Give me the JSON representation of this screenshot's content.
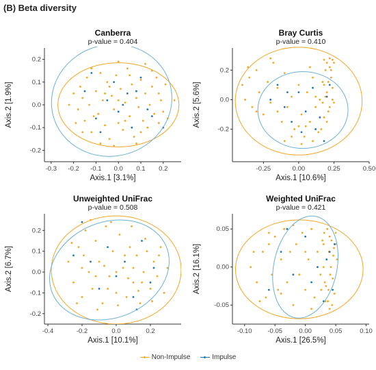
{
  "figure_title": "(B) Beta diversity",
  "colors": {
    "non_impulse": "#f5a623",
    "impulse": "#1f77b4",
    "impulse_ellipse": "#6ab0d8",
    "axis": "#333333"
  },
  "legend": [
    {
      "label": "Non-Impulse",
      "color": "#f5a623"
    },
    {
      "label": "Impulse",
      "color": "#1f77b4"
    }
  ],
  "chart_data": [
    {
      "type": "scatter",
      "title": "Canberra",
      "subtitle": "p-value = 0.404",
      "xlabel": "Axis.1   [3.1%]",
      "ylabel": "Axis.2   [1.9%]",
      "xlim": [
        -0.33,
        0.28
      ],
      "ylim": [
        -0.25,
        0.25
      ],
      "xticks": [
        -0.3,
        -0.2,
        -0.1,
        0.0,
        0.1,
        0.2
      ],
      "xtick_labels": [
        "-0.3",
        "-0.2",
        "-0.1",
        "0.0",
        "0.1",
        "0.2"
      ],
      "yticks": [
        -0.2,
        -0.1,
        0.0,
        0.1,
        0.2
      ],
      "ytick_labels": [
        "-0.2",
        "-0.1",
        "0.0",
        "0.1",
        "0.2"
      ],
      "ellipses": [
        {
          "group": "Non-Impulse",
          "cx": 0.0,
          "cy": 0.0,
          "rx": 0.27,
          "ry": 0.185,
          "angle": 0
        },
        {
          "group": "Impulse",
          "cx": -0.03,
          "cy": 0.02,
          "rx": 0.27,
          "ry": 0.245,
          "angle": -15
        }
      ],
      "spread": {
        "x": [
          -0.2,
          0.2
        ],
        "y": [
          -0.14,
          0.15
        ]
      },
      "non_impulse_points": [
        [
          -0.2,
          0.05
        ],
        [
          -0.18,
          -0.02
        ],
        [
          -0.17,
          0.08
        ],
        [
          -0.15,
          -0.07
        ],
        [
          -0.14,
          0.12
        ],
        [
          -0.13,
          0.0
        ],
        [
          -0.12,
          -0.12
        ],
        [
          -0.1,
          0.06
        ],
        [
          -0.09,
          -0.04
        ],
        [
          -0.08,
          0.14
        ],
        [
          -0.07,
          0.02
        ],
        [
          -0.06,
          -0.09
        ],
        [
          -0.05,
          0.1
        ],
        [
          -0.04,
          -0.15
        ],
        [
          -0.03,
          0.04
        ],
        [
          -0.02,
          -0.02
        ],
        [
          -0.01,
          0.13
        ],
        [
          0.0,
          -0.08
        ],
        [
          0.01,
          0.07
        ],
        [
          0.02,
          -0.11
        ],
        [
          0.03,
          0.01
        ],
        [
          0.04,
          0.16
        ],
        [
          0.05,
          -0.05
        ],
        [
          0.06,
          0.09
        ],
        [
          0.07,
          -0.14
        ],
        [
          0.08,
          0.03
        ],
        [
          0.09,
          -0.01
        ],
        [
          0.1,
          0.11
        ],
        [
          0.11,
          -0.07
        ],
        [
          0.12,
          0.05
        ],
        [
          0.13,
          -0.1
        ],
        [
          0.14,
          0.0
        ],
        [
          0.15,
          0.08
        ],
        [
          0.16,
          -0.04
        ],
        [
          0.17,
          0.12
        ],
        [
          0.18,
          -0.08
        ],
        [
          0.19,
          0.02
        ],
        [
          0.2,
          -0.03
        ],
        [
          0.21,
          0.09
        ],
        [
          0.22,
          -0.06
        ],
        [
          -0.19,
          -0.08
        ],
        [
          -0.16,
          0.03
        ],
        [
          -0.11,
          -0.05
        ],
        [
          -0.06,
          0.05
        ],
        [
          0.0,
          0.02
        ],
        [
          0.05,
          0.13
        ],
        [
          0.1,
          -0.12
        ],
        [
          0.15,
          0.15
        ],
        [
          -0.02,
          -0.18
        ],
        [
          0.08,
          -0.17
        ],
        [
          -0.22,
          0.0
        ],
        [
          0.25,
          0.02
        ],
        [
          -0.12,
          0.16
        ],
        [
          0.12,
          0.18
        ],
        [
          0.0,
          0.19
        ],
        [
          -0.08,
          -0.17
        ],
        [
          0.18,
          0.05
        ],
        [
          -0.16,
          -0.12
        ],
        [
          0.03,
          -0.07
        ],
        [
          -0.04,
          0.08
        ]
      ],
      "impulse_points": [
        [
          -0.12,
          0.14
        ],
        [
          -0.1,
          -0.06
        ],
        [
          -0.05,
          0.02
        ],
        [
          -0.02,
          0.1
        ],
        [
          0.0,
          -0.03
        ],
        [
          0.04,
          0.05
        ],
        [
          0.06,
          -0.1
        ],
        [
          0.1,
          0.12
        ],
        [
          0.13,
          -0.02
        ],
        [
          -0.15,
          0.06
        ],
        [
          -0.08,
          -0.12
        ],
        [
          0.02,
          0.0
        ],
        [
          0.08,
          0.06
        ],
        [
          0.15,
          -0.05
        ],
        [
          0.2,
          -0.1
        ]
      ]
    },
    {
      "type": "scatter",
      "title": "Bray Curtis",
      "subtitle": "p-value = 0.410",
      "xlabel": "Axis.1   [10.6%]",
      "ylabel": "Axis.2   [5.6%]",
      "xlim": [
        -0.47,
        0.5
      ],
      "ylim": [
        -0.42,
        0.35
      ],
      "xticks": [
        -0.25,
        0.0,
        0.25,
        0.5
      ],
      "xtick_labels": [
        "-0.25",
        "0.00",
        "0.25",
        "0.50"
      ],
      "yticks": [
        -0.2,
        0.0,
        0.2
      ],
      "ytick_labels": [
        "-0.2",
        "0.0",
        "0.2"
      ],
      "ellipses": [
        {
          "group": "Non-Impulse",
          "cx": 0.0,
          "cy": -0.01,
          "rx": 0.45,
          "ry": 0.365,
          "angle": 0
        },
        {
          "group": "Impulse",
          "cx": 0.03,
          "cy": -0.07,
          "rx": 0.32,
          "ry": 0.26,
          "angle": 0
        }
      ],
      "spread": {
        "x": [
          -0.4,
          0.28
        ],
        "y": [
          -0.32,
          0.3
        ]
      },
      "non_impulse_points": [
        [
          -0.4,
          0.1
        ],
        [
          -0.38,
          0.0
        ],
        [
          -0.35,
          0.15
        ],
        [
          -0.33,
          -0.05
        ],
        [
          -0.3,
          0.2
        ],
        [
          -0.28,
          0.05
        ],
        [
          -0.25,
          -0.1
        ],
        [
          -0.22,
          0.12
        ],
        [
          -0.2,
          -0.02
        ],
        [
          -0.18,
          0.25
        ],
        [
          -0.15,
          0.08
        ],
        [
          -0.12,
          -0.15
        ],
        [
          -0.1,
          0.18
        ],
        [
          -0.08,
          -0.05
        ],
        [
          -0.05,
          0.02
        ],
        [
          -0.03,
          -0.2
        ],
        [
          0.0,
          0.1
        ],
        [
          0.02,
          -0.1
        ],
        [
          0.04,
          -0.25
        ],
        [
          0.06,
          0.05
        ],
        [
          0.08,
          -0.15
        ],
        [
          0.1,
          0.15
        ],
        [
          0.12,
          -0.05
        ],
        [
          0.14,
          -0.22
        ],
        [
          0.15,
          0.0
        ],
        [
          0.17,
          0.12
        ],
        [
          0.18,
          -0.12
        ],
        [
          0.19,
          0.2
        ],
        [
          0.2,
          0.05
        ],
        [
          0.21,
          -0.08
        ],
        [
          0.22,
          0.22
        ],
        [
          0.23,
          0.15
        ],
        [
          0.24,
          0.08
        ],
        [
          0.25,
          0.25
        ],
        [
          0.25,
          -0.02
        ],
        [
          0.22,
          0.28
        ],
        [
          0.2,
          0.25
        ],
        [
          0.24,
          0.27
        ],
        [
          0.18,
          0.27
        ],
        [
          0.23,
          0.2
        ],
        [
          0.21,
          0.12
        ],
        [
          0.19,
          0.02
        ],
        [
          0.17,
          -0.02
        ],
        [
          0.2,
          -0.15
        ],
        [
          0.16,
          -0.2
        ],
        [
          0.1,
          -0.28
        ],
        [
          0.02,
          -0.3
        ],
        [
          -0.05,
          -0.25
        ],
        [
          -0.1,
          -0.28
        ],
        [
          0.05,
          -0.18
        ],
        [
          -0.2,
          0.28
        ],
        [
          -0.3,
          -0.08
        ],
        [
          -0.36,
          0.22
        ],
        [
          0.12,
          0.02
        ],
        [
          0.08,
          0.22
        ],
        [
          -0.15,
          -0.08
        ],
        [
          0.0,
          -0.18
        ],
        [
          0.22,
          -0.05
        ],
        [
          0.24,
          0.0
        ],
        [
          0.18,
          0.1
        ]
      ],
      "impulse_points": [
        [
          -0.15,
          0.1
        ],
        [
          -0.1,
          -0.05
        ],
        [
          -0.05,
          -0.15
        ],
        [
          0.0,
          0.05
        ],
        [
          0.05,
          -0.08
        ],
        [
          0.1,
          0.08
        ],
        [
          0.15,
          -0.12
        ],
        [
          0.2,
          0.02
        ],
        [
          -0.2,
          0.0
        ],
        [
          0.02,
          -0.22
        ],
        [
          0.12,
          -0.2
        ],
        [
          0.18,
          -0.28
        ],
        [
          -0.08,
          0.05
        ],
        [
          0.22,
          0.1
        ]
      ]
    },
    {
      "type": "scatter",
      "title": "Unweighted UniFrac",
      "subtitle": "p-value = 0.508",
      "xlabel": "Axis.1   [10.1%]",
      "ylabel": "Axis.2   [6.7%]",
      "xlim": [
        -0.42,
        0.38
      ],
      "ylim": [
        -0.25,
        0.28
      ],
      "xticks": [
        -0.4,
        -0.2,
        0.0,
        0.2
      ],
      "xtick_labels": [
        "-0.4",
        "-0.2",
        "0.0",
        "0.2"
      ],
      "yticks": [
        -0.2,
        -0.1,
        0.0,
        0.1,
        0.2
      ],
      "ytick_labels": [
        "-0.2",
        "-0.1",
        "0.0",
        "0.1",
        "0.2"
      ],
      "ellipses": [
        {
          "group": "Non-Impulse",
          "cx": 0.0,
          "cy": 0.01,
          "rx": 0.38,
          "ry": 0.26,
          "angle": 0
        },
        {
          "group": "Impulse",
          "cx": -0.04,
          "cy": 0.01,
          "rx": 0.36,
          "ry": 0.23,
          "angle": -22
        }
      ],
      "spread": {
        "x": [
          -0.28,
          0.3
        ],
        "y": [
          -0.18,
          0.25
        ]
      },
      "non_impulse_points": [
        [
          -0.28,
          0.05
        ],
        [
          -0.25,
          -0.05
        ],
        [
          -0.22,
          0.12
        ],
        [
          -0.2,
          -0.12
        ],
        [
          -0.18,
          0.2
        ],
        [
          -0.16,
          0.0
        ],
        [
          -0.14,
          -0.08
        ],
        [
          -0.12,
          0.15
        ],
        [
          -0.1,
          0.05
        ],
        [
          -0.08,
          -0.15
        ],
        [
          -0.06,
          0.22
        ],
        [
          -0.04,
          -0.02
        ],
        [
          -0.02,
          0.1
        ],
        [
          0.0,
          -0.1
        ],
        [
          0.02,
          0.18
        ],
        [
          0.04,
          0.02
        ],
        [
          0.06,
          -0.12
        ],
        [
          0.08,
          0.12
        ],
        [
          0.1,
          -0.05
        ],
        [
          0.12,
          0.08
        ],
        [
          0.14,
          -0.15
        ],
        [
          0.16,
          0.0
        ],
        [
          0.18,
          0.1
        ],
        [
          0.2,
          -0.08
        ],
        [
          0.22,
          0.05
        ],
        [
          0.24,
          -0.02
        ],
        [
          0.26,
          0.12
        ],
        [
          0.28,
          -0.1
        ],
        [
          0.3,
          0.02
        ],
        [
          -0.26,
          0.14
        ],
        [
          -0.23,
          -0.15
        ],
        [
          -0.19,
          0.08
        ],
        [
          -0.15,
          0.25
        ],
        [
          -0.11,
          -0.18
        ],
        [
          -0.07,
          0.03
        ],
        [
          -0.03,
          0.24
        ],
        [
          0.01,
          -0.16
        ],
        [
          0.05,
          0.08
        ],
        [
          0.09,
          0.22
        ],
        [
          0.13,
          -0.09
        ],
        [
          0.17,
          0.16
        ],
        [
          0.21,
          -0.14
        ],
        [
          0.25,
          0.08
        ],
        [
          -0.12,
          -0.02
        ],
        [
          0.0,
          0.0
        ],
        [
          0.1,
          0.02
        ],
        [
          -0.2,
          0.02
        ],
        [
          0.15,
          -0.05
        ],
        [
          -0.05,
          -0.08
        ],
        [
          0.07,
          -0.03
        ]
      ],
      "impulse_points": [
        [
          -0.2,
          0.24
        ],
        [
          -0.15,
          0.05
        ],
        [
          -0.1,
          -0.08
        ],
        [
          -0.05,
          0.12
        ],
        [
          0.0,
          -0.02
        ],
        [
          0.05,
          0.05
        ],
        [
          0.1,
          -0.12
        ],
        [
          0.15,
          0.15
        ],
        [
          0.2,
          -0.05
        ],
        [
          -0.25,
          0.08
        ],
        [
          0.12,
          -0.18
        ],
        [
          0.22,
          0.02
        ]
      ]
    },
    {
      "type": "scatter",
      "title": "Weighted UniFrac",
      "subtitle": "p-value = 0.421",
      "xlabel": "Axis.1   [26.5%]",
      "ylabel": "Axis.2   [16.1%]",
      "xlim": [
        -0.12,
        0.105
      ],
      "ylim": [
        -0.075,
        0.07
      ],
      "xticks": [
        -0.1,
        -0.05,
        0.0,
        0.05,
        0.1
      ],
      "xtick_labels": [
        "-0.10",
        "-0.05",
        "0.00",
        "0.05",
        "0.10"
      ],
      "yticks": [
        -0.05,
        0.0,
        0.05
      ],
      "ytick_labels": [
        "-0.05",
        "0.00",
        "0.05"
      ],
      "ellipses": [
        {
          "group": "Non-Impulse",
          "cx": -0.01,
          "cy": -0.003,
          "rx": 0.105,
          "ry": 0.065,
          "angle": 0
        },
        {
          "group": "Impulse",
          "cx": 0.0,
          "cy": 0.0,
          "rx": 0.052,
          "ry": 0.068,
          "angle": 12
        }
      ],
      "spread": {
        "x": [
          -0.09,
          0.055
        ],
        "y": [
          -0.06,
          0.06
        ]
      },
      "non_impulse_points": [
        [
          -0.09,
          0.0
        ],
        [
          -0.08,
          -0.02
        ],
        [
          -0.07,
          0.02
        ],
        [
          -0.065,
          -0.04
        ],
        [
          -0.06,
          0.03
        ],
        [
          -0.055,
          -0.01
        ],
        [
          -0.05,
          0.04
        ],
        [
          -0.045,
          -0.03
        ],
        [
          -0.04,
          0.01
        ],
        [
          -0.035,
          0.05
        ],
        [
          -0.03,
          -0.02
        ],
        [
          -0.025,
          0.02
        ],
        [
          -0.02,
          -0.05
        ],
        [
          -0.015,
          0.03
        ],
        [
          -0.01,
          -0.01
        ],
        [
          -0.005,
          0.045
        ],
        [
          0.0,
          -0.03
        ],
        [
          0.005,
          0.01
        ],
        [
          0.01,
          0.05
        ],
        [
          0.015,
          -0.04
        ],
        [
          0.02,
          0.02
        ],
        [
          0.025,
          -0.01
        ],
        [
          0.03,
          0.03
        ],
        [
          0.032,
          -0.02
        ],
        [
          0.035,
          0.01
        ],
        [
          0.038,
          -0.03
        ],
        [
          0.04,
          0.04
        ],
        [
          0.042,
          0.0
        ],
        [
          0.045,
          -0.015
        ],
        [
          0.047,
          0.025
        ],
        [
          0.05,
          0.045
        ],
        [
          0.052,
          0.01
        ],
        [
          0.048,
          -0.035
        ],
        [
          0.044,
          -0.05
        ],
        [
          0.04,
          -0.055
        ],
        [
          0.036,
          0.05
        ],
        [
          0.033,
          -0.045
        ],
        [
          0.03,
          0.0
        ],
        [
          0.028,
          0.035
        ],
        [
          0.026,
          -0.03
        ],
        [
          0.05,
          0.03
        ],
        [
          0.046,
          0.015
        ],
        [
          0.043,
          0.035
        ],
        [
          0.041,
          -0.01
        ],
        [
          0.039,
          0.02
        ],
        [
          0.037,
          -0.045
        ],
        [
          0.034,
          -0.025
        ],
        [
          0.031,
          0.045
        ],
        [
          -0.085,
          0.02
        ],
        [
          -0.075,
          -0.045
        ],
        [
          -0.06,
          0.045
        ],
        [
          0.01,
          -0.055
        ],
        [
          -0.02,
          0.055
        ],
        [
          0.02,
          0.0
        ],
        [
          -0.04,
          -0.035
        ],
        [
          0.0,
          0.02
        ]
      ],
      "impulse_points": [
        [
          -0.06,
          -0.03
        ],
        [
          -0.04,
          0.02
        ],
        [
          -0.02,
          -0.01
        ],
        [
          0.0,
          0.04
        ],
        [
          0.01,
          -0.02
        ],
        [
          0.02,
          0.0
        ],
        [
          0.03,
          -0.045
        ],
        [
          0.04,
          0.02
        ],
        [
          0.045,
          -0.03
        ],
        [
          -0.03,
          0.05
        ],
        [
          0.035,
          0.01
        ],
        [
          0.048,
          0.03
        ]
      ]
    }
  ]
}
